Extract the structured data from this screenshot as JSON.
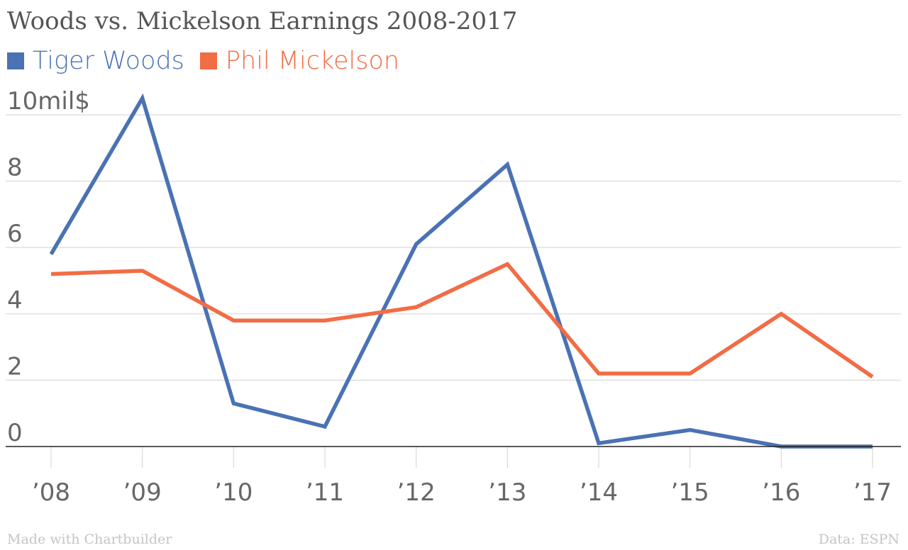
{
  "chart_data": {
    "type": "line",
    "title": "Woods vs. Mickelson Earnings 2008-2017",
    "categories": [
      "’08",
      "’09",
      "’10",
      "’11",
      "’12",
      "’13",
      "’14",
      "’15",
      "’16",
      "’17"
    ],
    "series": [
      {
        "name": "Tiger Woods",
        "color": "#4a72b4",
        "values": [
          5.8,
          10.5,
          1.3,
          0.6,
          6.1,
          8.5,
          0.1,
          0.5,
          0.0,
          0.0
        ]
      },
      {
        "name": "Phil Mickelson",
        "color": "#f26c45",
        "values": [
          5.2,
          5.3,
          3.8,
          3.8,
          4.2,
          5.5,
          2.2,
          2.2,
          4.0,
          2.1
        ]
      }
    ],
    "y_ticks": [
      {
        "value": 0,
        "label": "0"
      },
      {
        "value": 2,
        "label": "2"
      },
      {
        "value": 4,
        "label": "4"
      },
      {
        "value": 6,
        "label": "6"
      },
      {
        "value": 8,
        "label": "8"
      },
      {
        "value": 10,
        "label": "10mil$"
      }
    ],
    "ylim": [
      0,
      10.5
    ],
    "xlabel": "",
    "ylabel": "",
    "grid": true,
    "legend_position": "top-left"
  },
  "footer": {
    "credit": "Made with Chartbuilder",
    "source": "Data: ESPN"
  }
}
